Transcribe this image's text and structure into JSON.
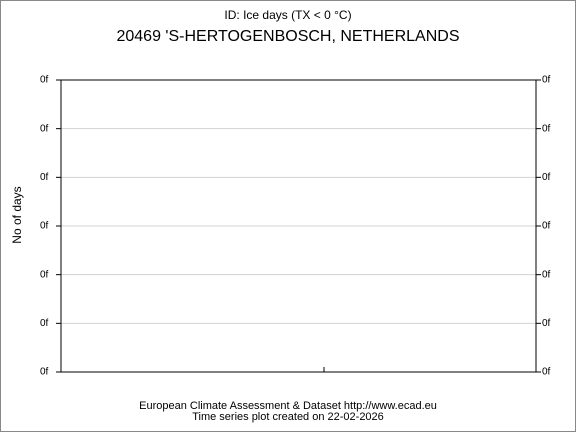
{
  "chart_data": {
    "type": "line",
    "title": "ID: Ice days (TX < 0 °C)",
    "subtitle": "20469 'S-HERTOGENBOSCH, NETHERLANDS",
    "y_label": "No of days",
    "footer": [
      "European Climate Assessment & Dataset  http://www.ecad.eu",
      "Time series plot created on 22-02-2026"
    ],
    "ylim": [
      0,
      6
    ],
    "yticks": [
      {
        "value": 0,
        "label": "0f"
      },
      {
        "value": 1,
        "label": "0f"
      },
      {
        "value": 2,
        "label": "0f"
      },
      {
        "value": 3,
        "label": "0f"
      },
      {
        "value": 4,
        "label": "0f"
      },
      {
        "value": 5,
        "label": "0f"
      },
      {
        "value": 6,
        "label": "0f"
      }
    ],
    "grid": true,
    "grid_color": "#d3d3d3"
  }
}
